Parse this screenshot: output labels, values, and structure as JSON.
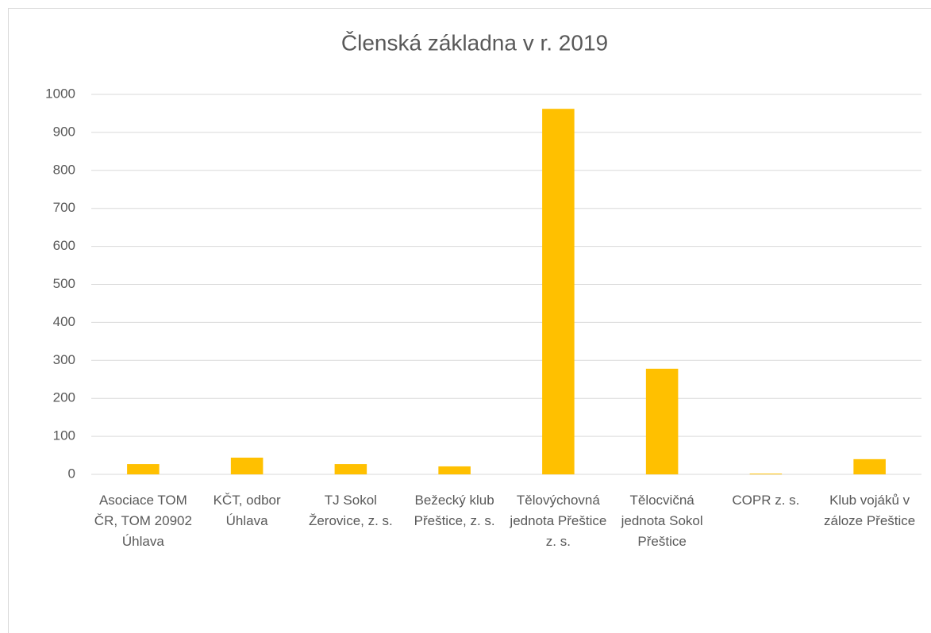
{
  "chart_data": {
    "type": "bar",
    "title": "Členská základna v r. 2019",
    "categories": [
      "Asociace TOM ČR, TOM 20902 Úhlava",
      "KČT, odbor Úhlava",
      "TJ Sokol Žerovice, z. s.",
      "Bežecký klub Přeštice, z. s.",
      "Tělovýchovná jednota Přeštice z. s.",
      "Tělocvičná jednota Sokol Přeštice",
      "COPR z. s.",
      "Klub vojáků v záloze Přeštice"
    ],
    "values": [
      27,
      44,
      27,
      21,
      962,
      278,
      2,
      40
    ],
    "color": "#ffc000",
    "ylim": [
      0,
      1000
    ],
    "yticks": [
      0,
      100,
      200,
      300,
      400,
      500,
      600,
      700,
      800,
      900,
      1000
    ],
    "grid": true
  }
}
